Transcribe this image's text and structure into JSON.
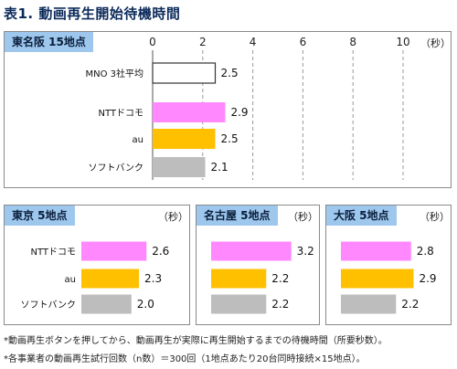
{
  "title": "表1. 動画再生開始待機時間",
  "unit": "（秒）",
  "colors": {
    "MNO 3社平均": "#ffffff",
    "NTTドコモ": "#ff88ff",
    "au": "#ffc000",
    "ソフトバンク": "#bdbdbd",
    "tag": "#9ec7ee"
  },
  "chart_data": [
    {
      "type": "bar",
      "orientation": "horizontal",
      "title": "東名阪 15地点",
      "categories": [
        "MNO 3社平均",
        "NTTドコモ",
        "au",
        "ソフトバンク"
      ],
      "values": [
        2.5,
        2.9,
        2.5,
        2.1
      ],
      "xlim": [
        0,
        10
      ],
      "xticks": [
        0,
        2,
        4,
        6,
        8,
        10
      ],
      "grid": "dashed vertical"
    },
    {
      "type": "bar",
      "orientation": "horizontal",
      "title": "東京 5地点",
      "categories": [
        "NTTドコモ",
        "au",
        "ソフトバンク"
      ],
      "values": [
        2.6,
        2.3,
        2.0
      ],
      "xlim": [
        0,
        10
      ]
    },
    {
      "type": "bar",
      "orientation": "horizontal",
      "title": "名古屋 5地点",
      "categories": [
        "NTTドコモ",
        "au",
        "ソフトバンク"
      ],
      "values": [
        3.2,
        2.2,
        2.2
      ],
      "xlim": [
        0,
        10
      ]
    },
    {
      "type": "bar",
      "orientation": "horizontal",
      "title": "大阪 5地点",
      "categories": [
        "NTTドコモ",
        "au",
        "ソフトバンク"
      ],
      "values": [
        2.8,
        2.9,
        2.2
      ],
      "xlim": [
        0,
        10
      ]
    }
  ],
  "footnotes": [
    "*動画再生ボタンを押してから、動画再生が実際に再生開始するまでの待機時間（所要秒数）。",
    "*各事業者の動画再生試行回数（n数）＝300回（1地点あたり20台同時接続×15地点）。"
  ]
}
